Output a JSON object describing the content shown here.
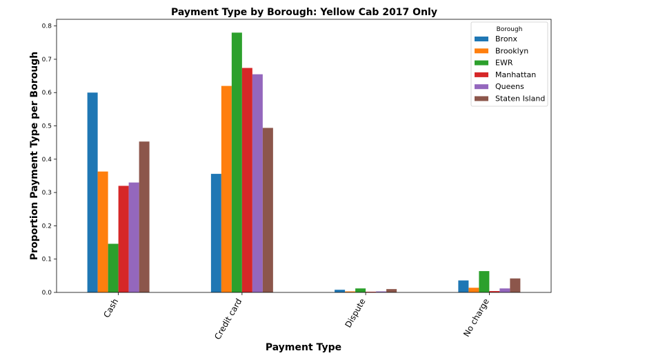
{
  "chart_data": {
    "type": "bar",
    "title": "Payment Type by Borough: Yellow Cab 2017 Only",
    "xlabel": "Payment Type",
    "ylabel": "Proportion Payment Type per Borough",
    "categories": [
      "Cash",
      "Credit card",
      "Dispute",
      "No charge"
    ],
    "ylim": [
      0,
      0.82
    ],
    "yticks": [
      "0.0",
      "0.1",
      "0.2",
      "0.3",
      "0.4",
      "0.5",
      "0.6",
      "0.7",
      "0.8"
    ],
    "grid": false,
    "legend": {
      "title": "Borough",
      "position": "top-right"
    },
    "series": [
      {
        "name": "Bronx",
        "color": "#1f77b4",
        "values": [
          0.6,
          0.356,
          0.008,
          0.036
        ]
      },
      {
        "name": "Brooklyn",
        "color": "#ff7f0e",
        "values": [
          0.363,
          0.62,
          0.003,
          0.014
        ]
      },
      {
        "name": "EWR",
        "color": "#2ca02c",
        "values": [
          0.146,
          0.78,
          0.012,
          0.064
        ]
      },
      {
        "name": "Manhattan",
        "color": "#d62728",
        "values": [
          0.32,
          0.674,
          0.002,
          0.004
        ]
      },
      {
        "name": "Queens",
        "color": "#9467bd",
        "values": [
          0.33,
          0.655,
          0.003,
          0.012
        ]
      },
      {
        "name": "Staten Island",
        "color": "#8c564b",
        "values": [
          0.453,
          0.494,
          0.01,
          0.042
        ]
      }
    ]
  }
}
